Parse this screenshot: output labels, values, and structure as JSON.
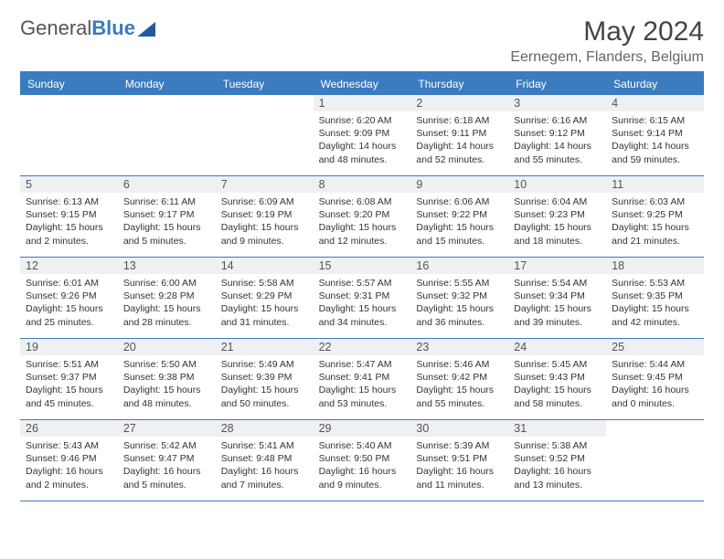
{
  "brand": {
    "name_part1": "General",
    "name_part2": "Blue"
  },
  "title": "May 2024",
  "location": "Eernegem, Flanders, Belgium",
  "colors": {
    "accent": "#3b7bbf",
    "header_bg": "#3b7bbf",
    "daynum_bg": "#eef0f2",
    "border": "#3b7bbf",
    "text": "#333333",
    "muted": "#666666"
  },
  "weekdays": [
    "Sunday",
    "Monday",
    "Tuesday",
    "Wednesday",
    "Thursday",
    "Friday",
    "Saturday"
  ],
  "weeks": [
    [
      {
        "day": "",
        "sunrise": "",
        "sunset": "",
        "daylight1": "",
        "daylight2": ""
      },
      {
        "day": "",
        "sunrise": "",
        "sunset": "",
        "daylight1": "",
        "daylight2": ""
      },
      {
        "day": "",
        "sunrise": "",
        "sunset": "",
        "daylight1": "",
        "daylight2": ""
      },
      {
        "day": "1",
        "sunrise": "Sunrise: 6:20 AM",
        "sunset": "Sunset: 9:09 PM",
        "daylight1": "Daylight: 14 hours",
        "daylight2": "and 48 minutes."
      },
      {
        "day": "2",
        "sunrise": "Sunrise: 6:18 AM",
        "sunset": "Sunset: 9:11 PM",
        "daylight1": "Daylight: 14 hours",
        "daylight2": "and 52 minutes."
      },
      {
        "day": "3",
        "sunrise": "Sunrise: 6:16 AM",
        "sunset": "Sunset: 9:12 PM",
        "daylight1": "Daylight: 14 hours",
        "daylight2": "and 55 minutes."
      },
      {
        "day": "4",
        "sunrise": "Sunrise: 6:15 AM",
        "sunset": "Sunset: 9:14 PM",
        "daylight1": "Daylight: 14 hours",
        "daylight2": "and 59 minutes."
      }
    ],
    [
      {
        "day": "5",
        "sunrise": "Sunrise: 6:13 AM",
        "sunset": "Sunset: 9:15 PM",
        "daylight1": "Daylight: 15 hours",
        "daylight2": "and 2 minutes."
      },
      {
        "day": "6",
        "sunrise": "Sunrise: 6:11 AM",
        "sunset": "Sunset: 9:17 PM",
        "daylight1": "Daylight: 15 hours",
        "daylight2": "and 5 minutes."
      },
      {
        "day": "7",
        "sunrise": "Sunrise: 6:09 AM",
        "sunset": "Sunset: 9:19 PM",
        "daylight1": "Daylight: 15 hours",
        "daylight2": "and 9 minutes."
      },
      {
        "day": "8",
        "sunrise": "Sunrise: 6:08 AM",
        "sunset": "Sunset: 9:20 PM",
        "daylight1": "Daylight: 15 hours",
        "daylight2": "and 12 minutes."
      },
      {
        "day": "9",
        "sunrise": "Sunrise: 6:06 AM",
        "sunset": "Sunset: 9:22 PM",
        "daylight1": "Daylight: 15 hours",
        "daylight2": "and 15 minutes."
      },
      {
        "day": "10",
        "sunrise": "Sunrise: 6:04 AM",
        "sunset": "Sunset: 9:23 PM",
        "daylight1": "Daylight: 15 hours",
        "daylight2": "and 18 minutes."
      },
      {
        "day": "11",
        "sunrise": "Sunrise: 6:03 AM",
        "sunset": "Sunset: 9:25 PM",
        "daylight1": "Daylight: 15 hours",
        "daylight2": "and 21 minutes."
      }
    ],
    [
      {
        "day": "12",
        "sunrise": "Sunrise: 6:01 AM",
        "sunset": "Sunset: 9:26 PM",
        "daylight1": "Daylight: 15 hours",
        "daylight2": "and 25 minutes."
      },
      {
        "day": "13",
        "sunrise": "Sunrise: 6:00 AM",
        "sunset": "Sunset: 9:28 PM",
        "daylight1": "Daylight: 15 hours",
        "daylight2": "and 28 minutes."
      },
      {
        "day": "14",
        "sunrise": "Sunrise: 5:58 AM",
        "sunset": "Sunset: 9:29 PM",
        "daylight1": "Daylight: 15 hours",
        "daylight2": "and 31 minutes."
      },
      {
        "day": "15",
        "sunrise": "Sunrise: 5:57 AM",
        "sunset": "Sunset: 9:31 PM",
        "daylight1": "Daylight: 15 hours",
        "daylight2": "and 34 minutes."
      },
      {
        "day": "16",
        "sunrise": "Sunrise: 5:55 AM",
        "sunset": "Sunset: 9:32 PM",
        "daylight1": "Daylight: 15 hours",
        "daylight2": "and 36 minutes."
      },
      {
        "day": "17",
        "sunrise": "Sunrise: 5:54 AM",
        "sunset": "Sunset: 9:34 PM",
        "daylight1": "Daylight: 15 hours",
        "daylight2": "and 39 minutes."
      },
      {
        "day": "18",
        "sunrise": "Sunrise: 5:53 AM",
        "sunset": "Sunset: 9:35 PM",
        "daylight1": "Daylight: 15 hours",
        "daylight2": "and 42 minutes."
      }
    ],
    [
      {
        "day": "19",
        "sunrise": "Sunrise: 5:51 AM",
        "sunset": "Sunset: 9:37 PM",
        "daylight1": "Daylight: 15 hours",
        "daylight2": "and 45 minutes."
      },
      {
        "day": "20",
        "sunrise": "Sunrise: 5:50 AM",
        "sunset": "Sunset: 9:38 PM",
        "daylight1": "Daylight: 15 hours",
        "daylight2": "and 48 minutes."
      },
      {
        "day": "21",
        "sunrise": "Sunrise: 5:49 AM",
        "sunset": "Sunset: 9:39 PM",
        "daylight1": "Daylight: 15 hours",
        "daylight2": "and 50 minutes."
      },
      {
        "day": "22",
        "sunrise": "Sunrise: 5:47 AM",
        "sunset": "Sunset: 9:41 PM",
        "daylight1": "Daylight: 15 hours",
        "daylight2": "and 53 minutes."
      },
      {
        "day": "23",
        "sunrise": "Sunrise: 5:46 AM",
        "sunset": "Sunset: 9:42 PM",
        "daylight1": "Daylight: 15 hours",
        "daylight2": "and 55 minutes."
      },
      {
        "day": "24",
        "sunrise": "Sunrise: 5:45 AM",
        "sunset": "Sunset: 9:43 PM",
        "daylight1": "Daylight: 15 hours",
        "daylight2": "and 58 minutes."
      },
      {
        "day": "25",
        "sunrise": "Sunrise: 5:44 AM",
        "sunset": "Sunset: 9:45 PM",
        "daylight1": "Daylight: 16 hours",
        "daylight2": "and 0 minutes."
      }
    ],
    [
      {
        "day": "26",
        "sunrise": "Sunrise: 5:43 AM",
        "sunset": "Sunset: 9:46 PM",
        "daylight1": "Daylight: 16 hours",
        "daylight2": "and 2 minutes."
      },
      {
        "day": "27",
        "sunrise": "Sunrise: 5:42 AM",
        "sunset": "Sunset: 9:47 PM",
        "daylight1": "Daylight: 16 hours",
        "daylight2": "and 5 minutes."
      },
      {
        "day": "28",
        "sunrise": "Sunrise: 5:41 AM",
        "sunset": "Sunset: 9:48 PM",
        "daylight1": "Daylight: 16 hours",
        "daylight2": "and 7 minutes."
      },
      {
        "day": "29",
        "sunrise": "Sunrise: 5:40 AM",
        "sunset": "Sunset: 9:50 PM",
        "daylight1": "Daylight: 16 hours",
        "daylight2": "and 9 minutes."
      },
      {
        "day": "30",
        "sunrise": "Sunrise: 5:39 AM",
        "sunset": "Sunset: 9:51 PM",
        "daylight1": "Daylight: 16 hours",
        "daylight2": "and 11 minutes."
      },
      {
        "day": "31",
        "sunrise": "Sunrise: 5:38 AM",
        "sunset": "Sunset: 9:52 PM",
        "daylight1": "Daylight: 16 hours",
        "daylight2": "and 13 minutes."
      },
      {
        "day": "",
        "sunrise": "",
        "sunset": "",
        "daylight1": "",
        "daylight2": ""
      }
    ]
  ]
}
